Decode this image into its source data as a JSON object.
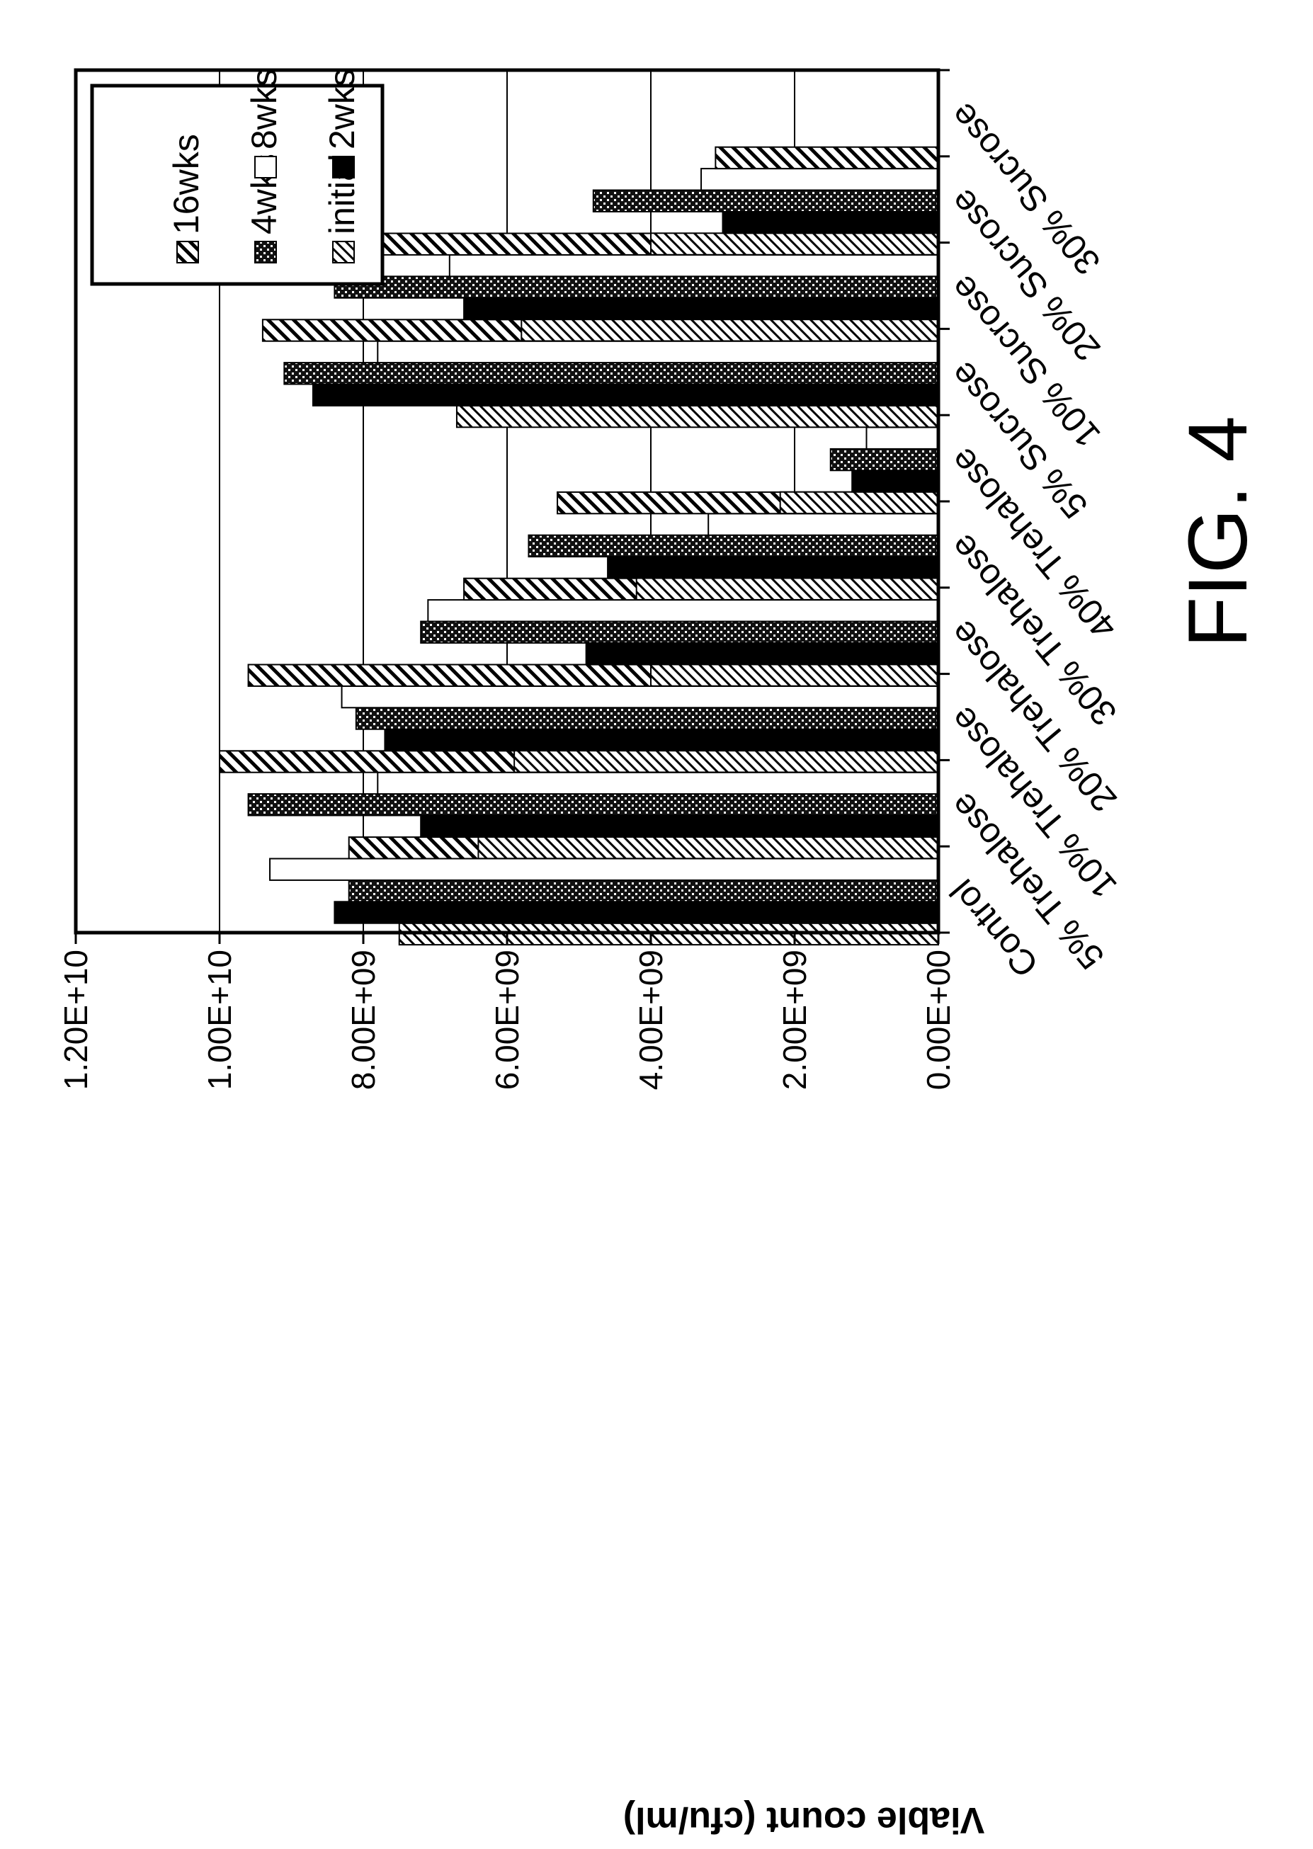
{
  "figure": {
    "caption": "FIG. 4"
  },
  "chart_data": {
    "type": "bar",
    "orientation": "vertical",
    "title": "",
    "xlabel": "",
    "ylabel": "Viable count (cfu/ml)",
    "ylim": [
      0,
      12000000000
    ],
    "yticks": [
      {
        "value": 0,
        "label": "0.00E+00"
      },
      {
        "value": 2000000000,
        "label": "2.00E+09"
      },
      {
        "value": 4000000000,
        "label": "4.00E+09"
      },
      {
        "value": 6000000000,
        "label": "6.00E+09"
      },
      {
        "value": 8000000000,
        "label": "8.00E+09"
      },
      {
        "value": 10000000000,
        "label": "1.00E+10"
      },
      {
        "value": 12000000000,
        "label": "1.20E+10"
      }
    ],
    "grid": "horizontal major gridlines",
    "legend_position": "top-right",
    "categories": [
      "Control",
      "5% Trehalose",
      "10% Trehalose",
      "20% Trehalose",
      "30% Trehalose",
      "40% Trehalose",
      "5% Sucrose",
      "10% Sucrose",
      "20% Sucrose",
      "30% Sucrose"
    ],
    "series": [
      {
        "name": "initial",
        "pattern": "diagonal-hatch",
        "values": [
          7500000000.0,
          6400000000.0,
          5900000000.0,
          4000000000.0,
          4200000000.0,
          2200000000.0,
          6700000000.0,
          5800000000.0,
          4000000000.0,
          0
        ]
      },
      {
        "name": "2wks",
        "pattern": "solid-black",
        "values": [
          8400000000.0,
          7200000000.0,
          7700000000.0,
          4900000000.0,
          4600000000.0,
          1200000000.0,
          8700000000.0,
          6600000000.0,
          3000000000.0,
          0
        ]
      },
      {
        "name": "4wks",
        "pattern": "crosshatch",
        "values": [
          8200000000.0,
          9600000000.0,
          8100000000.0,
          7200000000.0,
          5700000000.0,
          1500000000.0,
          9100000000.0,
          8400000000.0,
          4800000000.0,
          0
        ]
      },
      {
        "name": "8wks",
        "pattern": "white",
        "values": [
          9300000000.0,
          7800000000.0,
          8300000000.0,
          7100000000.0,
          3200000000.0,
          1000000000.0,
          7800000000.0,
          6800000000.0,
          3300000000.0,
          0
        ]
      },
      {
        "name": "16wks",
        "pattern": "slant-hatch",
        "values": [
          8200000000.0,
          10000000000.0,
          9600000000.0,
          6600000000.0,
          5300000000.0,
          50000000.0,
          9400000000.0,
          7900000000.0,
          3100000000.0,
          0
        ]
      }
    ]
  }
}
